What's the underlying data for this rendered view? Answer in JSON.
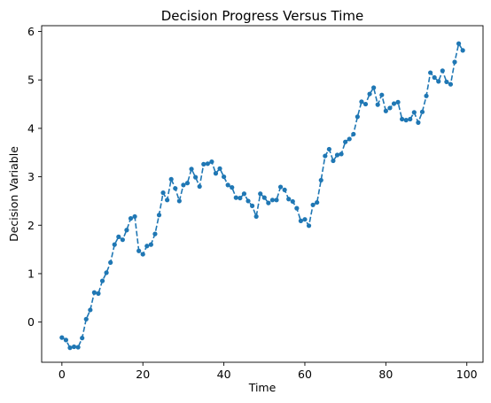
{
  "chart_data": {
    "type": "line",
    "title": "Decision Progress Versus Time",
    "xlabel": "Time",
    "ylabel": "Decision Variable",
    "xlim": [
      -5,
      104
    ],
    "ylim": [
      -0.83,
      6.12
    ],
    "xticks": [
      0,
      20,
      40,
      60,
      80,
      100
    ],
    "yticks": [
      0,
      1,
      2,
      3,
      4,
      5,
      6
    ],
    "grid": false,
    "line_style": "dashed",
    "marker": "circle",
    "color": "#1f77b4",
    "x": [
      0,
      1,
      2,
      3,
      4,
      5,
      6,
      7,
      8,
      9,
      10,
      11,
      12,
      13,
      14,
      15,
      16,
      17,
      18,
      19,
      20,
      21,
      22,
      23,
      24,
      25,
      26,
      27,
      28,
      29,
      30,
      31,
      32,
      33,
      34,
      35,
      36,
      37,
      38,
      39,
      40,
      41,
      42,
      43,
      44,
      45,
      46,
      47,
      48,
      49,
      50,
      51,
      52,
      53,
      54,
      55,
      56,
      57,
      58,
      59,
      60,
      61,
      62,
      63,
      64,
      65,
      66,
      67,
      68,
      69,
      70,
      71,
      72,
      73,
      74,
      75,
      76,
      77,
      78,
      79,
      80,
      81,
      82,
      83,
      84,
      85,
      86,
      87,
      88,
      89,
      90,
      91,
      92,
      93,
      94,
      95,
      96,
      97,
      98,
      99
    ],
    "y": [
      -0.32,
      -0.37,
      -0.53,
      -0.51,
      -0.52,
      -0.33,
      0.06,
      0.25,
      0.61,
      0.59,
      0.85,
      1.02,
      1.23,
      1.6,
      1.76,
      1.7,
      1.9,
      2.14,
      2.18,
      1.47,
      1.4,
      1.57,
      1.6,
      1.82,
      2.21,
      2.67,
      2.52,
      2.95,
      2.76,
      2.5,
      2.83,
      2.87,
      3.16,
      2.99,
      2.8,
      3.26,
      3.27,
      3.31,
      3.07,
      3.17,
      3.0,
      2.83,
      2.78,
      2.57,
      2.56,
      2.65,
      2.5,
      2.4,
      2.18,
      2.65,
      2.57,
      2.46,
      2.52,
      2.52,
      2.79,
      2.73,
      2.54,
      2.49,
      2.35,
      2.09,
      2.12,
      1.99,
      2.42,
      2.47,
      2.93,
      3.43,
      3.57,
      3.33,
      3.45,
      3.47,
      3.72,
      3.78,
      3.88,
      4.24,
      4.55,
      4.5,
      4.71,
      4.84,
      4.49,
      4.69,
      4.36,
      4.42,
      4.51,
      4.54,
      4.19,
      4.17,
      4.19,
      4.33,
      4.12,
      4.34,
      4.67,
      5.15,
      5.05,
      4.97,
      5.19,
      4.96,
      4.91,
      5.37,
      5.75,
      5.61
    ]
  }
}
